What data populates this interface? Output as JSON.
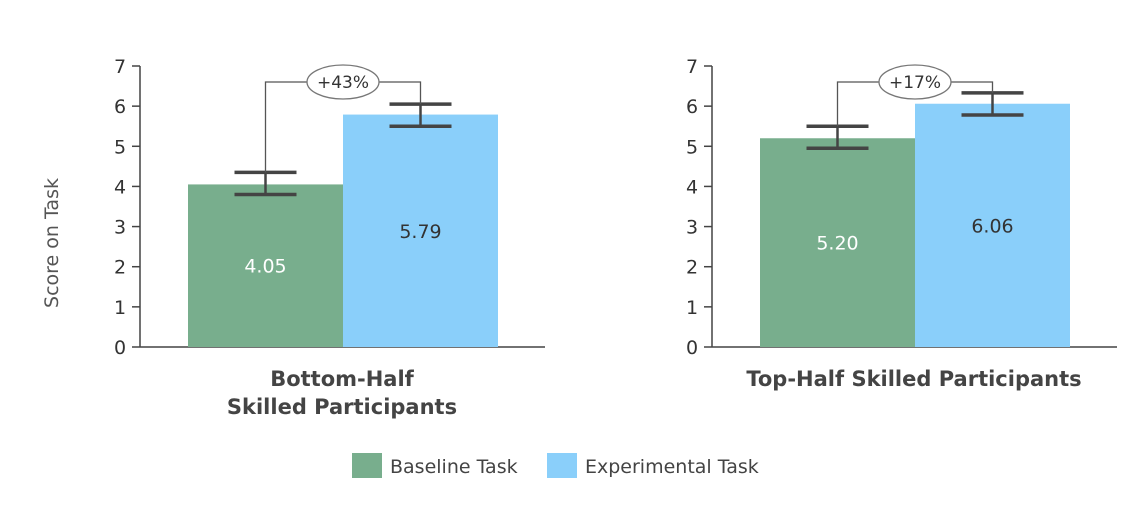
{
  "chart_data": {
    "type": "bar",
    "ylabel": "Score on Task",
    "ylim": [
      0,
      7
    ],
    "yticks": [
      0,
      1,
      2,
      3,
      4,
      5,
      6,
      7
    ],
    "legend_position": "bottom-center",
    "series": [
      {
        "name": "Baseline Task",
        "color": "#78ae8d"
      },
      {
        "name": "Experimental Task",
        "color": "#8acffa"
      }
    ],
    "panels": [
      {
        "category_lines": [
          "Bottom-Half",
          "Skilled Participants"
        ],
        "values": [
          4.05,
          5.79
        ],
        "value_labels": [
          "4.05",
          "5.79"
        ],
        "error": [
          {
            "low": 3.8,
            "high": 4.35
          },
          {
            "low": 5.5,
            "high": 6.05
          }
        ],
        "difference_label": "+43%"
      },
      {
        "category_lines": [
          "Top-Half Skilled Participants"
        ],
        "values": [
          5.2,
          6.06
        ],
        "value_labels": [
          "5.20",
          "6.06"
        ],
        "error": [
          {
            "low": 4.95,
            "high": 5.5
          },
          {
            "low": 5.78,
            "high": 6.33
          }
        ],
        "difference_label": "+17%"
      }
    ]
  }
}
